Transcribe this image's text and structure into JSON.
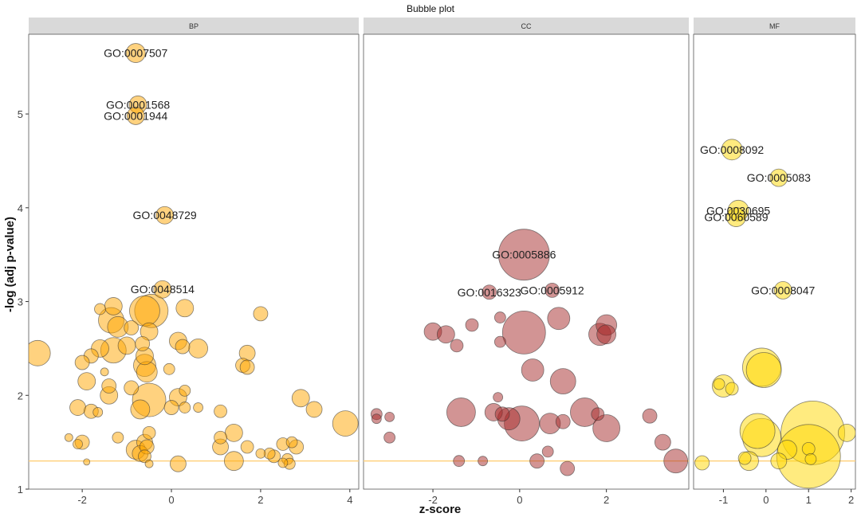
{
  "chart_data": {
    "type": "scatter",
    "title": "Bubble plot",
    "xlabel": "z-score",
    "ylabel": "-log (adj p-value)",
    "ylim": [
      1,
      5.85
    ],
    "yticks": [
      1,
      2,
      3,
      4,
      5
    ],
    "threshold_y": 1.3,
    "threshold_color": "#FFD27F",
    "grid": false,
    "legend": "none",
    "panels": [
      {
        "name": "BP",
        "fill": "#FFA500",
        "xlim": [
          -3.2,
          4.2
        ],
        "xticks": [
          -2,
          0,
          2,
          4
        ],
        "points": [
          {
            "x": -0.8,
            "y": 5.65,
            "r": 12,
            "label": "GO:0007507"
          },
          {
            "x": -0.75,
            "y": 5.1,
            "r": 11,
            "label": "GO:0001568"
          },
          {
            "x": -0.8,
            "y": 4.98,
            "r": 11,
            "label": "GO:0001944"
          },
          {
            "x": -0.15,
            "y": 3.92,
            "r": 11,
            "label": "GO:0048729"
          },
          {
            "x": -0.2,
            "y": 3.13,
            "r": 11,
            "label": "GO:0048514"
          },
          {
            "x": -3.0,
            "y": 2.45,
            "r": 16
          },
          {
            "x": -1.6,
            "y": 2.92,
            "r": 7
          },
          {
            "x": -1.3,
            "y": 2.95,
            "r": 11
          },
          {
            "x": -1.35,
            "y": 2.8,
            "r": 16
          },
          {
            "x": -1.2,
            "y": 2.73,
            "r": 13
          },
          {
            "x": -0.6,
            "y": 2.9,
            "r": 19
          },
          {
            "x": -0.45,
            "y": 2.9,
            "r": 21
          },
          {
            "x": 0.3,
            "y": 2.93,
            "r": 11
          },
          {
            "x": 2.0,
            "y": 2.87,
            "r": 9
          },
          {
            "x": -0.9,
            "y": 2.72,
            "r": 9
          },
          {
            "x": -0.5,
            "y": 2.68,
            "r": 11
          },
          {
            "x": -1.6,
            "y": 2.5,
            "r": 11
          },
          {
            "x": -1.8,
            "y": 2.42,
            "r": 9
          },
          {
            "x": -1.3,
            "y": 2.48,
            "r": 16
          },
          {
            "x": -1.0,
            "y": 2.53,
            "r": 11
          },
          {
            "x": -0.65,
            "y": 2.55,
            "r": 9
          },
          {
            "x": -0.6,
            "y": 2.42,
            "r": 11
          },
          {
            "x": -0.6,
            "y": 2.32,
            "r": 14
          },
          {
            "x": -0.55,
            "y": 2.25,
            "r": 13
          },
          {
            "x": 0.15,
            "y": 2.58,
            "r": 11
          },
          {
            "x": 0.25,
            "y": 2.52,
            "r": 9
          },
          {
            "x": 0.6,
            "y": 2.5,
            "r": 12
          },
          {
            "x": -2.0,
            "y": 2.35,
            "r": 9
          },
          {
            "x": -1.5,
            "y": 2.25,
            "r": 5
          },
          {
            "x": -1.4,
            "y": 2.1,
            "r": 9
          },
          {
            "x": -1.9,
            "y": 2.15,
            "r": 11
          },
          {
            "x": -0.05,
            "y": 2.28,
            "r": 7
          },
          {
            "x": 1.6,
            "y": 2.32,
            "r": 9
          },
          {
            "x": 1.7,
            "y": 2.45,
            "r": 10
          },
          {
            "x": 1.7,
            "y": 2.3,
            "r": 9
          },
          {
            "x": -1.4,
            "y": 2.0,
            "r": 11
          },
          {
            "x": -0.9,
            "y": 2.08,
            "r": 9
          },
          {
            "x": -0.5,
            "y": 1.95,
            "r": 21
          },
          {
            "x": -0.7,
            "y": 1.85,
            "r": 12
          },
          {
            "x": 0.15,
            "y": 1.98,
            "r": 11
          },
          {
            "x": 0.3,
            "y": 2.05,
            "r": 7
          },
          {
            "x": 0.0,
            "y": 1.87,
            "r": 9
          },
          {
            "x": 0.3,
            "y": 1.87,
            "r": 7
          },
          {
            "x": 0.6,
            "y": 1.87,
            "r": 6
          },
          {
            "x": -2.1,
            "y": 1.87,
            "r": 10
          },
          {
            "x": -1.8,
            "y": 1.83,
            "r": 9
          },
          {
            "x": -1.65,
            "y": 1.82,
            "r": 6
          },
          {
            "x": 1.1,
            "y": 1.83,
            "r": 8
          },
          {
            "x": 2.9,
            "y": 1.97,
            "r": 11
          },
          {
            "x": 3.2,
            "y": 1.85,
            "r": 10
          },
          {
            "x": 3.9,
            "y": 1.7,
            "r": 16
          },
          {
            "x": 1.4,
            "y": 1.6,
            "r": 11
          },
          {
            "x": 1.1,
            "y": 1.55,
            "r": 8
          },
          {
            "x": -1.2,
            "y": 1.55,
            "r": 7
          },
          {
            "x": -0.5,
            "y": 1.6,
            "r": 8
          },
          {
            "x": -0.6,
            "y": 1.5,
            "r": 10
          },
          {
            "x": -0.55,
            "y": 1.45,
            "r": 9
          },
          {
            "x": -0.8,
            "y": 1.42,
            "r": 12
          },
          {
            "x": -0.7,
            "y": 1.38,
            "r": 10
          },
          {
            "x": -0.6,
            "y": 1.35,
            "r": 8
          },
          {
            "x": -2.0,
            "y": 1.5,
            "r": 9
          },
          {
            "x": -2.1,
            "y": 1.48,
            "r": 6
          },
          {
            "x": -2.3,
            "y": 1.55,
            "r": 5
          },
          {
            "x": 1.1,
            "y": 1.45,
            "r": 10
          },
          {
            "x": 1.7,
            "y": 1.45,
            "r": 8
          },
          {
            "x": 2.0,
            "y": 1.38,
            "r": 6
          },
          {
            "x": 2.2,
            "y": 1.38,
            "r": 7
          },
          {
            "x": 2.3,
            "y": 1.35,
            "r": 8
          },
          {
            "x": 2.5,
            "y": 1.48,
            "r": 8
          },
          {
            "x": 2.7,
            "y": 1.5,
            "r": 7
          },
          {
            "x": 2.8,
            "y": 1.45,
            "r": 9
          },
          {
            "x": 2.6,
            "y": 1.32,
            "r": 7
          },
          {
            "x": 2.65,
            "y": 1.27,
            "r": 7
          },
          {
            "x": 2.5,
            "y": 1.28,
            "r": 6
          },
          {
            "x": 0.15,
            "y": 1.27,
            "r": 10
          },
          {
            "x": 1.4,
            "y": 1.3,
            "r": 12
          },
          {
            "x": -0.5,
            "y": 1.27,
            "r": 5
          },
          {
            "x": -1.9,
            "y": 1.29,
            "r": 4
          }
        ]
      },
      {
        "name": "CC",
        "fill": "#A52A2A",
        "xlim": [
          -3.6,
          3.9
        ],
        "xticks": [
          -2,
          0,
          2
        ],
        "points": [
          {
            "x": 0.1,
            "y": 3.5,
            "r": 32,
            "label": "GO:0005886"
          },
          {
            "x": -0.7,
            "y": 3.1,
            "r": 9,
            "label": "GO:0016323"
          },
          {
            "x": 0.75,
            "y": 3.12,
            "r": 9,
            "label": "GO:0005912"
          },
          {
            "x": -2.0,
            "y": 2.68,
            "r": 11
          },
          {
            "x": -1.7,
            "y": 2.65,
            "r": 11
          },
          {
            "x": -1.45,
            "y": 2.53,
            "r": 8
          },
          {
            "x": -1.1,
            "y": 2.75,
            "r": 8
          },
          {
            "x": -0.45,
            "y": 2.83,
            "r": 7
          },
          {
            "x": -0.45,
            "y": 2.57,
            "r": 7
          },
          {
            "x": 0.1,
            "y": 2.67,
            "r": 27
          },
          {
            "x": 0.9,
            "y": 2.82,
            "r": 14
          },
          {
            "x": 1.85,
            "y": 2.65,
            "r": 14
          },
          {
            "x": 2.0,
            "y": 2.75,
            "r": 13
          },
          {
            "x": 2.0,
            "y": 2.65,
            "r": 12
          },
          {
            "x": 0.3,
            "y": 2.27,
            "r": 14
          },
          {
            "x": 1.0,
            "y": 2.15,
            "r": 16
          },
          {
            "x": -0.5,
            "y": 1.98,
            "r": 6
          },
          {
            "x": -3.3,
            "y": 1.8,
            "r": 7
          },
          {
            "x": -3.3,
            "y": 1.75,
            "r": 6
          },
          {
            "x": -3.0,
            "y": 1.77,
            "r": 6
          },
          {
            "x": -1.35,
            "y": 1.82,
            "r": 18
          },
          {
            "x": -0.6,
            "y": 1.82,
            "r": 11
          },
          {
            "x": -0.4,
            "y": 1.8,
            "r": 9
          },
          {
            "x": -0.25,
            "y": 1.75,
            "r": 14
          },
          {
            "x": 0.05,
            "y": 1.7,
            "r": 22
          },
          {
            "x": 0.7,
            "y": 1.7,
            "r": 13
          },
          {
            "x": 1.0,
            "y": 1.72,
            "r": 9
          },
          {
            "x": 1.5,
            "y": 1.82,
            "r": 18
          },
          {
            "x": 1.8,
            "y": 1.8,
            "r": 8
          },
          {
            "x": 2.0,
            "y": 1.65,
            "r": 17
          },
          {
            "x": 3.0,
            "y": 1.78,
            "r": 9
          },
          {
            "x": 3.3,
            "y": 1.5,
            "r": 10
          },
          {
            "x": 3.6,
            "y": 1.3,
            "r": 15
          },
          {
            "x": -3.0,
            "y": 1.55,
            "r": 7
          },
          {
            "x": -1.4,
            "y": 1.3,
            "r": 7
          },
          {
            "x": -0.85,
            "y": 1.3,
            "r": 6
          },
          {
            "x": 0.4,
            "y": 1.3,
            "r": 9
          },
          {
            "x": 0.65,
            "y": 1.4,
            "r": 7
          },
          {
            "x": 1.1,
            "y": 1.22,
            "r": 9
          }
        ]
      },
      {
        "name": "MF",
        "fill": "#FFD700",
        "xlim": [
          -1.7,
          2.1
        ],
        "xticks": [
          -1,
          0,
          1,
          2
        ],
        "points": [
          {
            "x": -0.8,
            "y": 4.62,
            "r": 13,
            "label": "GO:0008092"
          },
          {
            "x": 0.3,
            "y": 4.32,
            "r": 11,
            "label": "GO:0005083"
          },
          {
            "x": -0.65,
            "y": 3.97,
            "r": 13,
            "label": "GO:0030695"
          },
          {
            "x": -0.7,
            "y": 3.9,
            "r": 12,
            "label": "GO:0060589"
          },
          {
            "x": 0.4,
            "y": 3.12,
            "r": 11,
            "label": "GO:0008047"
          },
          {
            "x": -1.0,
            "y": 2.1,
            "r": 14
          },
          {
            "x": -1.1,
            "y": 2.12,
            "r": 7
          },
          {
            "x": -0.8,
            "y": 2.07,
            "r": 8
          },
          {
            "x": -0.1,
            "y": 2.3,
            "r": 24
          },
          {
            "x": -0.05,
            "y": 2.27,
            "r": 22
          },
          {
            "x": -0.2,
            "y": 1.62,
            "r": 22
          },
          {
            "x": -0.1,
            "y": 1.55,
            "r": 24
          },
          {
            "x": 1.1,
            "y": 1.6,
            "r": 40
          },
          {
            "x": 1.0,
            "y": 1.35,
            "r": 40
          },
          {
            "x": 0.5,
            "y": 1.42,
            "r": 12
          },
          {
            "x": 0.3,
            "y": 1.3,
            "r": 10
          },
          {
            "x": -0.4,
            "y": 1.3,
            "r": 12
          },
          {
            "x": -0.5,
            "y": 1.33,
            "r": 8
          },
          {
            "x": 1.0,
            "y": 1.43,
            "r": 8
          },
          {
            "x": 1.05,
            "y": 1.32,
            "r": 7
          },
          {
            "x": -1.5,
            "y": 1.28,
            "r": 9
          },
          {
            "x": 1.9,
            "y": 1.6,
            "r": 11
          }
        ]
      }
    ]
  }
}
